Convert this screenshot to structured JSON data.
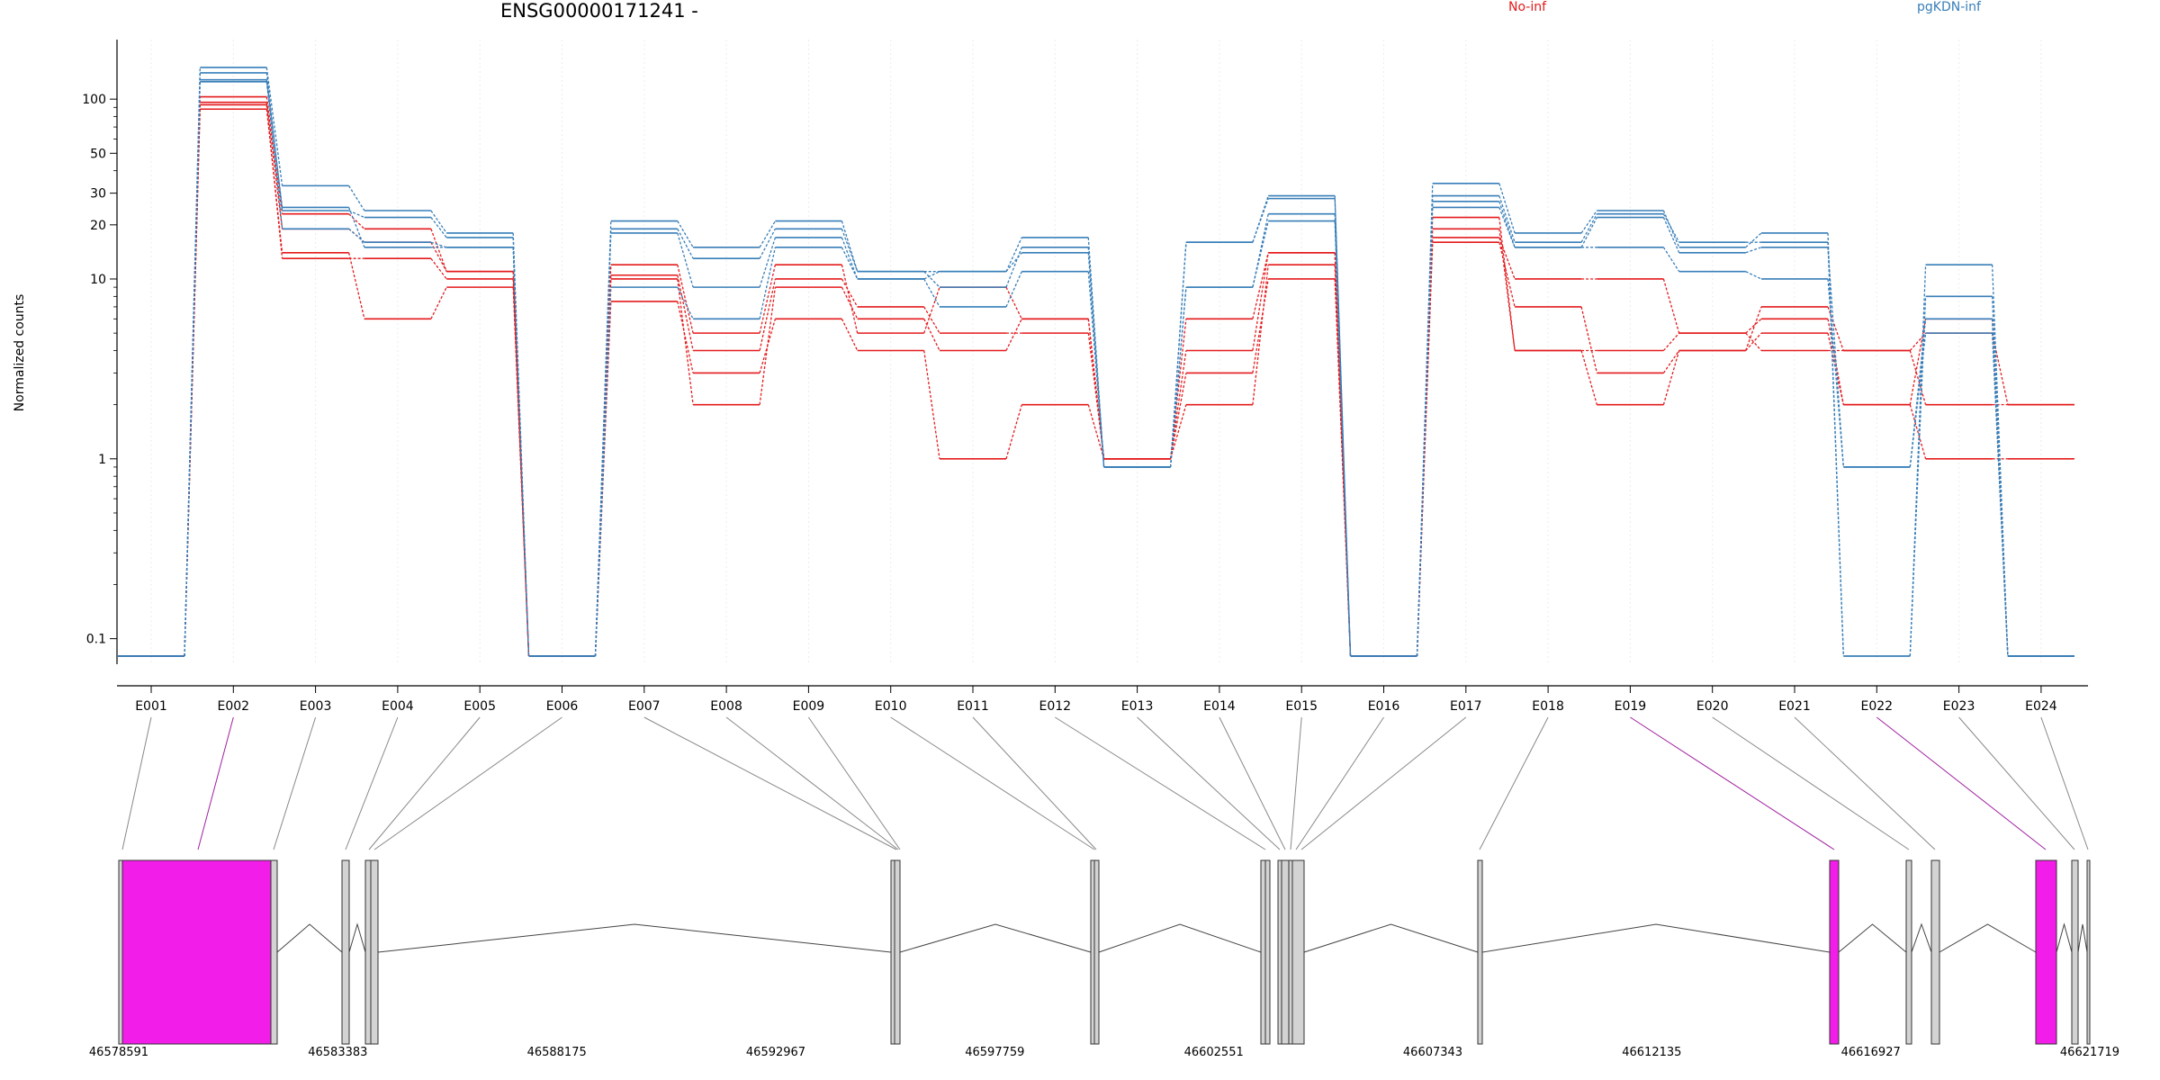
{
  "chart_data": {
    "type": "line",
    "title": "ENSG00000171241 -",
    "ylabel": "Normalized counts",
    "yscale": "log",
    "ylim": [
      0.08,
      200
    ],
    "yticks": [
      0.1,
      1,
      10,
      20,
      30,
      50,
      100
    ],
    "ytick_labels": [
      "0.1",
      "1",
      "10",
      "20",
      "30",
      "50",
      "100"
    ],
    "categories": [
      "E001",
      "E002",
      "E003",
      "E004",
      "E005",
      "E006",
      "E007",
      "E008",
      "E009",
      "E010",
      "E011",
      "E012",
      "E013",
      "E014",
      "E015",
      "E016",
      "E017",
      "E018",
      "E019",
      "E020",
      "E021",
      "E022",
      "E023",
      "E024"
    ],
    "legend": [
      {
        "name": "No-inf",
        "color": "#e41a1c"
      },
      {
        "name": "pgKDN-inf",
        "color": "#377eb8"
      }
    ],
    "series": [
      {
        "group": "No-inf",
        "color": "#e41a1c",
        "values": [
          0.08,
          88,
          14,
          6,
          9,
          0.08,
          7.5,
          3,
          6,
          4,
          1,
          2,
          1,
          3,
          10,
          0.08,
          16,
          7,
          3,
          4,
          5,
          2,
          1,
          1
        ]
      },
      {
        "group": "No-inf",
        "color": "#e41a1c",
        "values": [
          0.08,
          93,
          13,
          13,
          10,
          0.08,
          10,
          2,
          9,
          6,
          4,
          6,
          1,
          2,
          12,
          0.08,
          17,
          10,
          10,
          5,
          4,
          4,
          5,
          2
        ]
      },
      {
        "group": "No-inf",
        "color": "#e41a1c",
        "values": [
          0.08,
          96,
          19,
          16,
          11,
          0.08,
          12,
          5,
          12,
          5,
          9,
          6,
          1,
          6,
          14,
          0.08,
          19,
          4,
          2,
          4,
          7,
          4,
          2,
          2
        ]
      },
      {
        "group": "No-inf",
        "color": "#e41a1c",
        "values": [
          0.08,
          103,
          23,
          19,
          11,
          0.08,
          10.5,
          4,
          10,
          7,
          5,
          5,
          1,
          4,
          14,
          0.08,
          22,
          4,
          4,
          5,
          6,
          2,
          6,
          0.08
        ]
      },
      {
        "group": "pgKDN-inf",
        "color": "#377eb8",
        "values": [
          0.08,
          125,
          19,
          16,
          15,
          0.08,
          9,
          6,
          15,
          10,
          7,
          11,
          0.9,
          9,
          21,
          0.08,
          25,
          15,
          15,
          11,
          10,
          0.9,
          5,
          0.08
        ]
      },
      {
        "group": "pgKDN-inf",
        "color": "#377eb8",
        "values": [
          0.08,
          128,
          25,
          15,
          15,
          0.08,
          18,
          9,
          17,
          10,
          11,
          14,
          0.9,
          9,
          23,
          0.08,
          27,
          15,
          22,
          14,
          15,
          0.9,
          6,
          0.08
        ]
      },
      {
        "group": "pgKDN-inf",
        "color": "#377eb8",
        "values": [
          0.08,
          140,
          24,
          22,
          17,
          0.08,
          19,
          13,
          19,
          11,
          9,
          15,
          0.9,
          16,
          28,
          0.08,
          29,
          16,
          23,
          16,
          16,
          0.08,
          8,
          0.08
        ]
      },
      {
        "group": "pgKDN-inf",
        "color": "#377eb8",
        "values": [
          0.08,
          150,
          33,
          24,
          18,
          0.08,
          21,
          15,
          21,
          11,
          11,
          17,
          0.9,
          16,
          29,
          0.08,
          34,
          18,
          24,
          15,
          18,
          0.08,
          12,
          0.08
        ]
      }
    ],
    "gene_model": {
      "x_tick_labels": [
        "46578591",
        "46583383",
        "46588175",
        "46592967",
        "46597759",
        "46602551",
        "46607343",
        "46612135",
        "46616927",
        "46621719"
      ],
      "highlight_color": "#f21de8",
      "box_color": "#d3d3d3",
      "highlighted_exons": [
        "E002",
        "E019",
        "E022"
      ]
    }
  }
}
